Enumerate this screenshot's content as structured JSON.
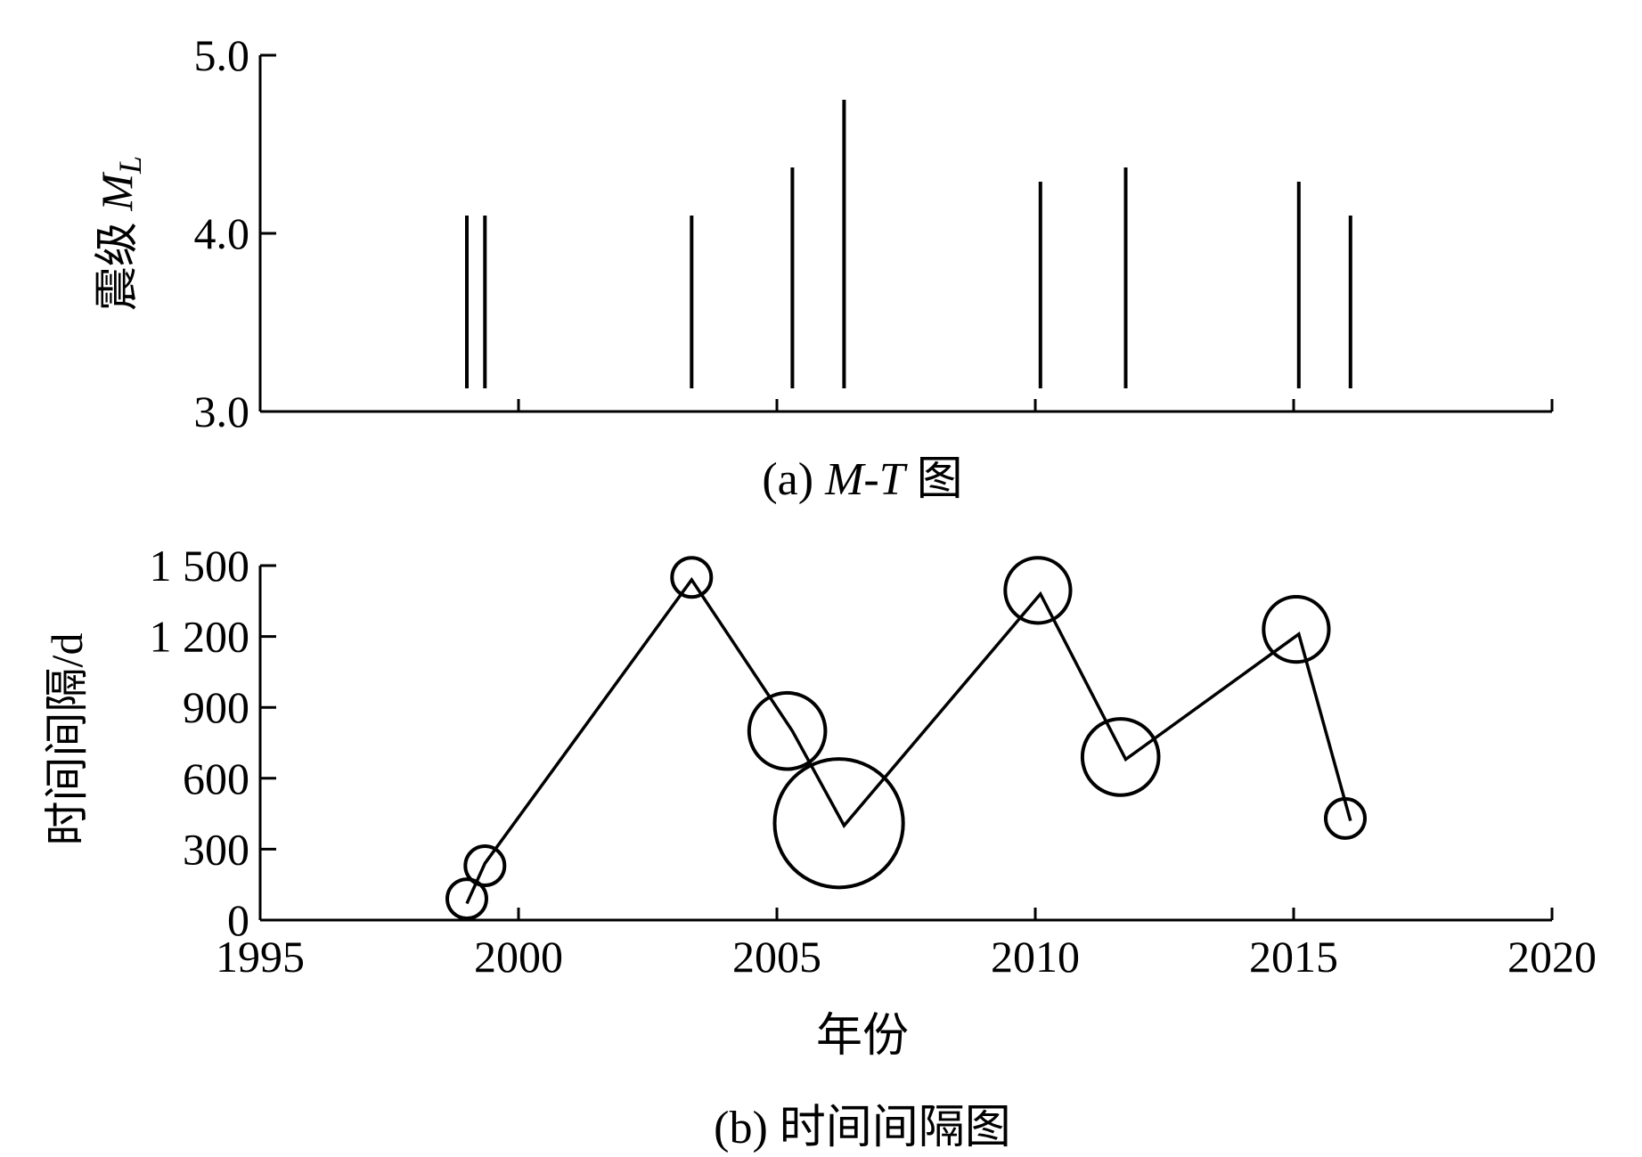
{
  "chart_data": [
    {
      "type": "bar",
      "caption_prefix": "(a) ",
      "caption_italic": "M-T",
      "caption_suffix": " 图",
      "ylabel": "震级 ",
      "ylabel_italic": "M",
      "ylabel_sub": "L",
      "ylim": [
        3.0,
        5.0
      ],
      "xlim": [
        1995,
        2020
      ],
      "yticks": [
        "3.0",
        "4.0",
        "5.0"
      ],
      "xticks": [
        2000,
        2005,
        2010,
        2015,
        2020
      ],
      "events": [
        {
          "year": 1999.0,
          "magnitude": 4.1
        },
        {
          "year": 1999.35,
          "magnitude": 4.1
        },
        {
          "year": 2003.35,
          "magnitude": 4.1
        },
        {
          "year": 2005.3,
          "magnitude": 4.37
        },
        {
          "year": 2006.3,
          "magnitude": 4.75
        },
        {
          "year": 2010.1,
          "magnitude": 4.29
        },
        {
          "year": 2011.75,
          "magnitude": 4.37
        },
        {
          "year": 2015.1,
          "magnitude": 4.29
        },
        {
          "year": 2016.1,
          "magnitude": 4.1
        }
      ]
    },
    {
      "type": "line",
      "caption": "(b) 时间间隔图",
      "xlabel": "年份",
      "ylabel": "时间间隔/d",
      "xlim": [
        1995,
        2020
      ],
      "ylim": [
        0,
        1500
      ],
      "xticks": [
        "1995",
        "2000",
        "2005",
        "2010",
        "2015",
        "2020"
      ],
      "yticks": [
        "0",
        "300",
        "600",
        "900",
        "1 200",
        "1 500"
      ],
      "line": [
        {
          "year": 1999.0,
          "interval": 70
        },
        {
          "year": 1999.35,
          "interval": 240
        },
        {
          "year": 2003.35,
          "interval": 1440
        },
        {
          "year": 2005.3,
          "interval": 800
        },
        {
          "year": 2006.3,
          "interval": 400
        },
        {
          "year": 2010.1,
          "interval": 1380
        },
        {
          "year": 2011.75,
          "interval": 680
        },
        {
          "year": 2015.1,
          "interval": 1210
        },
        {
          "year": 2016.1,
          "interval": 420
        }
      ],
      "circles": [
        {
          "year": 1999.0,
          "interval": 90,
          "magnitude": 4.1
        },
        {
          "year": 1999.35,
          "interval": 230,
          "magnitude": 4.1
        },
        {
          "year": 2003.35,
          "interval": 1450,
          "magnitude": 4.1
        },
        {
          "year": 2005.2,
          "interval": 800,
          "magnitude": 4.37
        },
        {
          "year": 2006.2,
          "interval": 410,
          "magnitude": 4.75
        },
        {
          "year": 2010.05,
          "interval": 1395,
          "magnitude": 4.29
        },
        {
          "year": 2011.65,
          "interval": 690,
          "magnitude": 4.37
        },
        {
          "year": 2015.05,
          "interval": 1230,
          "magnitude": 4.29
        },
        {
          "year": 2016.0,
          "interval": 430,
          "magnitude": 4.1
        }
      ]
    }
  ]
}
